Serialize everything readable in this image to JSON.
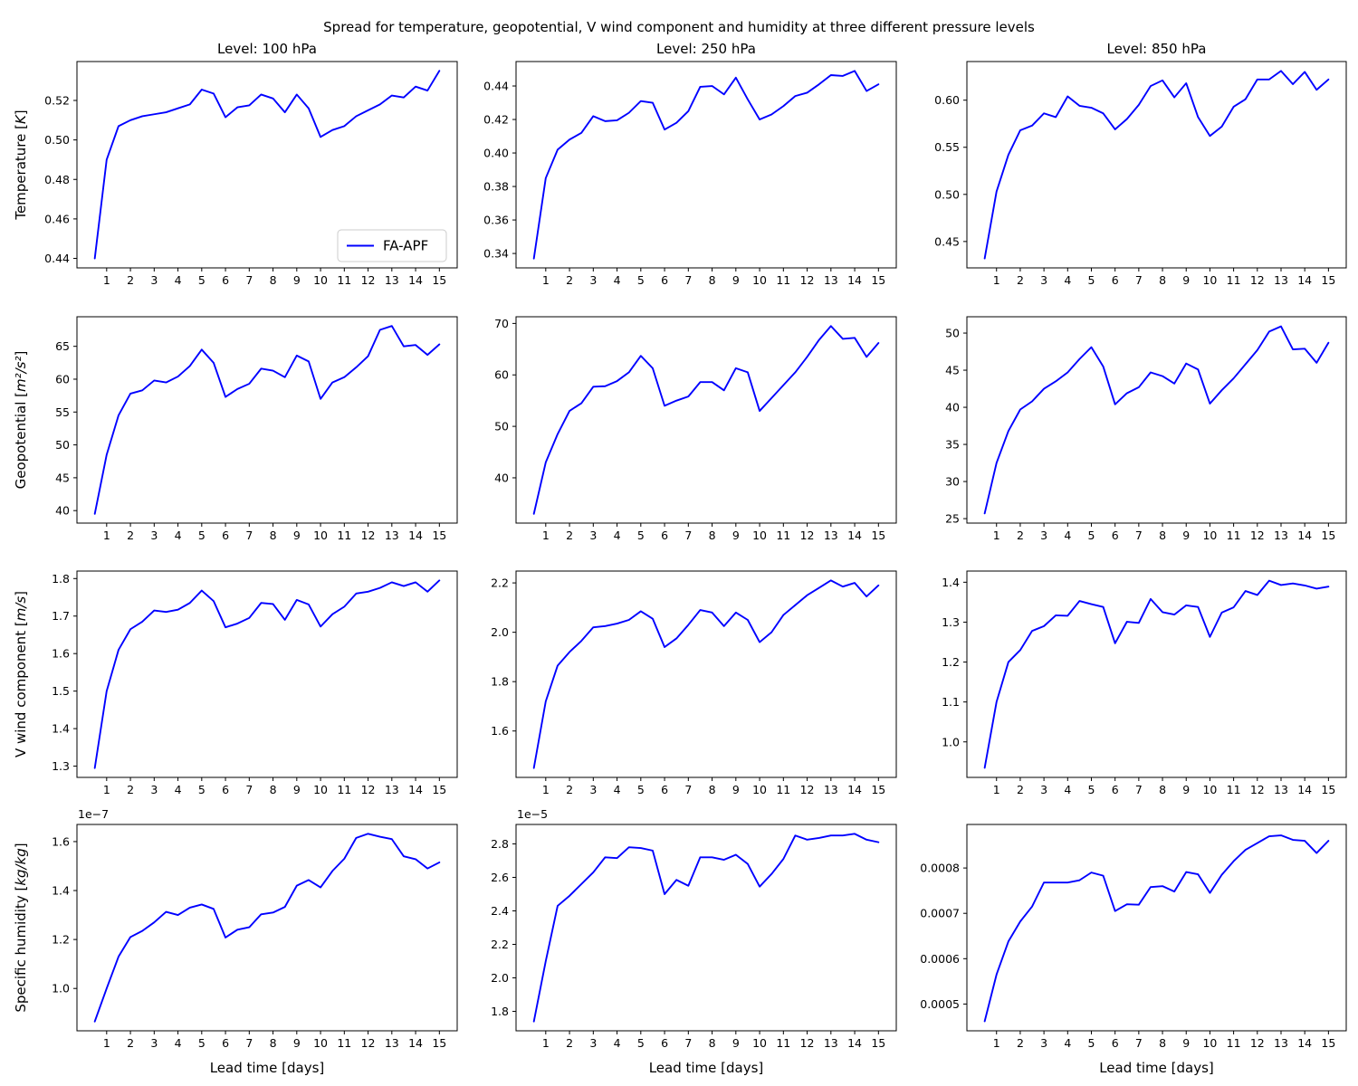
{
  "figure": {
    "title": "Spread for temperature, geopotential, V wind component and humidity at three different pressure levels",
    "xlabel": "Lead time [days]",
    "legend_label": "FA-APF",
    "line_color": "#0000ff",
    "axes_color": "#000000",
    "legend_border_color": "#cccccc"
  },
  "chart_data": {
    "type": "line",
    "series_name": "FA-APF",
    "column_titles": [
      "Level: 100 hPa",
      "Level: 250 hPa",
      "Level: 850 hPa"
    ],
    "row_ylabels": [
      "Temperature [K]",
      "Geopotential [m²/s²]",
      "V wind component [m/s]",
      "Specific humidity [kg/kg]"
    ],
    "xlabel": "Lead time [days]",
    "xlim": [
      -0.25,
      15.75
    ],
    "xticks": [
      1,
      2,
      3,
      4,
      5,
      6,
      7,
      8,
      9,
      10,
      11,
      12,
      13,
      14,
      15
    ],
    "x": [
      0.5,
      1,
      1.5,
      2,
      2.5,
      3,
      3.5,
      4,
      4.5,
      5,
      5.5,
      6,
      6.5,
      7,
      7.5,
      8,
      8.5,
      9,
      9.5,
      10,
      10.5,
      11,
      11.5,
      12,
      12.5,
      13,
      13.5,
      14,
      14.5,
      15
    ],
    "subplots": [
      {
        "id": "temperature-100hpa",
        "title": "Level: 100 hPa",
        "ylabel": "Temperature [K]",
        "offset_label": null,
        "show_legend": true,
        "ylim": [
          0.4352,
          0.5397
        ],
        "yticks": [
          0.44,
          0.46,
          0.48,
          0.5,
          0.52
        ],
        "ytick_labels": [
          "0.44",
          "0.46",
          "0.48",
          "0.50",
          "0.52"
        ],
        "y": [
          0.44,
          0.49,
          0.507,
          0.51,
          0.512,
          0.513,
          0.514,
          0.516,
          0.518,
          0.5255,
          0.5235,
          0.5115,
          0.5165,
          0.5175,
          0.523,
          0.521,
          0.514,
          0.523,
          0.516,
          0.5015,
          0.505,
          0.507,
          0.512,
          0.515,
          0.518,
          0.5225,
          0.5215,
          0.527,
          0.525,
          0.535
        ]
      },
      {
        "id": "temperature-250hpa",
        "title": "Level: 250 hPa",
        "ylabel": null,
        "offset_label": null,
        "show_legend": false,
        "ylim": [
          0.3314,
          0.4546
        ],
        "yticks": [
          0.34,
          0.36,
          0.38,
          0.4,
          0.42,
          0.44
        ],
        "ytick_labels": [
          "0.34",
          "0.36",
          "0.38",
          "0.40",
          "0.42",
          "0.44"
        ],
        "y": [
          0.337,
          0.385,
          0.402,
          0.408,
          0.412,
          0.422,
          0.419,
          0.4195,
          0.424,
          0.431,
          0.43,
          0.414,
          0.418,
          0.425,
          0.4395,
          0.44,
          0.435,
          0.445,
          0.432,
          0.42,
          0.423,
          0.428,
          0.434,
          0.436,
          0.441,
          0.4465,
          0.446,
          0.449,
          0.437,
          0.441
        ]
      },
      {
        "id": "temperature-850hpa",
        "title": "Level: 850 hPa",
        "ylabel": null,
        "offset_label": null,
        "show_legend": false,
        "ylim": [
          0.422,
          0.641
        ],
        "yticks": [
          0.45,
          0.5,
          0.55,
          0.6
        ],
        "ytick_labels": [
          "0.45",
          "0.50",
          "0.55",
          "0.60"
        ],
        "y": [
          0.432,
          0.503,
          0.542,
          0.568,
          0.573,
          0.586,
          0.582,
          0.604,
          0.594,
          0.592,
          0.586,
          0.569,
          0.58,
          0.595,
          0.615,
          0.621,
          0.603,
          0.618,
          0.582,
          0.562,
          0.572,
          0.593,
          0.601,
          0.622,
          0.622,
          0.631,
          0.617,
          0.63,
          0.611,
          0.622
        ]
      },
      {
        "id": "geopotential-100hpa",
        "title": null,
        "ylabel": "Geopotential [m²/s²]",
        "offset_label": null,
        "show_legend": false,
        "ylim": [
          38.1,
          69.5
        ],
        "yticks": [
          40,
          45,
          50,
          55,
          60,
          65
        ],
        "ytick_labels": [
          "40",
          "45",
          "50",
          "55",
          "60",
          "65"
        ],
        "y": [
          39.5,
          48.5,
          54.5,
          57.8,
          58.3,
          59.8,
          59.5,
          60.4,
          62.0,
          64.5,
          62.5,
          57.3,
          58.5,
          59.3,
          61.6,
          61.3,
          60.3,
          63.6,
          62.7,
          57.0,
          59.5,
          60.3,
          61.8,
          63.5,
          67.5,
          68.1,
          65.0,
          65.2,
          63.7,
          65.3
        ]
      },
      {
        "id": "geopotential-250hpa",
        "title": null,
        "ylabel": null,
        "offset_label": null,
        "show_legend": false,
        "ylim": [
          31.2,
          71.3
        ],
        "yticks": [
          40,
          50,
          60,
          70
        ],
        "ytick_labels": [
          "40",
          "50",
          "60",
          "70"
        ],
        "y": [
          33.0,
          43.0,
          48.5,
          53.0,
          54.5,
          57.7,
          57.8,
          58.8,
          60.5,
          63.7,
          61.3,
          54.0,
          55.0,
          55.8,
          58.6,
          58.6,
          57.0,
          61.3,
          60.5,
          53.0,
          55.5,
          58.0,
          60.5,
          63.5,
          66.8,
          69.5,
          67.0,
          67.2,
          63.5,
          66.2
        ]
      },
      {
        "id": "geopotential-850hpa",
        "title": null,
        "ylabel": null,
        "offset_label": null,
        "show_legend": false,
        "ylim": [
          24.4,
          52.2
        ],
        "yticks": [
          25,
          30,
          35,
          40,
          45,
          50
        ],
        "ytick_labels": [
          "25",
          "30",
          "35",
          "40",
          "45",
          "50"
        ],
        "y": [
          25.7,
          32.5,
          36.8,
          39.7,
          40.8,
          42.5,
          43.5,
          44.7,
          46.5,
          48.1,
          45.5,
          40.4,
          41.9,
          42.7,
          44.7,
          44.2,
          43.2,
          45.9,
          45.1,
          40.5,
          42.3,
          43.9,
          45.8,
          47.7,
          50.2,
          50.9,
          47.8,
          47.9,
          46.0,
          48.7
        ]
      },
      {
        "id": "v-wind-100hpa",
        "title": null,
        "ylabel": "V wind component [m/s]",
        "offset_label": null,
        "show_legend": false,
        "ylim": [
          1.27,
          1.82
        ],
        "yticks": [
          1.3,
          1.4,
          1.5,
          1.6,
          1.7,
          1.8
        ],
        "ytick_labels": [
          "1.3",
          "1.4",
          "1.5",
          "1.6",
          "1.7",
          "1.8"
        ],
        "y": [
          1.295,
          1.5,
          1.61,
          1.665,
          1.685,
          1.715,
          1.711,
          1.717,
          1.735,
          1.768,
          1.74,
          1.67,
          1.68,
          1.695,
          1.735,
          1.732,
          1.69,
          1.743,
          1.731,
          1.672,
          1.705,
          1.725,
          1.76,
          1.765,
          1.775,
          1.79,
          1.78,
          1.79,
          1.765,
          1.795
        ]
      },
      {
        "id": "v-wind-250hpa",
        "title": null,
        "ylabel": null,
        "offset_label": null,
        "show_legend": false,
        "ylim": [
          1.412,
          2.248
        ],
        "yticks": [
          1.6,
          1.8,
          2.0,
          2.2
        ],
        "ytick_labels": [
          "1.6",
          "1.8",
          "2.0",
          "2.2"
        ],
        "y": [
          1.45,
          1.72,
          1.865,
          1.92,
          1.965,
          2.02,
          2.025,
          2.035,
          2.05,
          2.085,
          2.055,
          1.94,
          1.975,
          2.03,
          2.09,
          2.08,
          2.025,
          2.08,
          2.05,
          1.96,
          2.0,
          2.07,
          2.11,
          2.15,
          2.18,
          2.21,
          2.185,
          2.2,
          2.145,
          2.19
        ]
      },
      {
        "id": "v-wind-850hpa",
        "title": null,
        "ylabel": null,
        "offset_label": null,
        "show_legend": false,
        "ylim": [
          0.911,
          1.428
        ],
        "yticks": [
          1.0,
          1.1,
          1.2,
          1.3,
          1.4
        ],
        "ytick_labels": [
          "1.0",
          "1.1",
          "1.2",
          "1.3",
          "1.4"
        ],
        "y": [
          0.935,
          1.1,
          1.2,
          1.23,
          1.278,
          1.29,
          1.317,
          1.316,
          1.353,
          1.345,
          1.338,
          1.247,
          1.301,
          1.298,
          1.358,
          1.325,
          1.319,
          1.342,
          1.338,
          1.263,
          1.324,
          1.337,
          1.378,
          1.368,
          1.404,
          1.393,
          1.397,
          1.392,
          1.384,
          1.389
        ]
      },
      {
        "id": "specific-humidity-100hpa",
        "title": null,
        "ylabel": "Specific humidity [kg/kg]",
        "offset_label": "1e−7",
        "show_legend": false,
        "ylim": [
          0.827,
          1.67
        ],
        "yticks": [
          1.0,
          1.2,
          1.4,
          1.6
        ],
        "ytick_labels": [
          "1.0",
          "1.2",
          "1.4",
          "1.6"
        ],
        "y": [
          0.865,
          1.0,
          1.13,
          1.21,
          1.235,
          1.27,
          1.313,
          1.3,
          1.33,
          1.343,
          1.325,
          1.208,
          1.24,
          1.25,
          1.303,
          1.31,
          1.333,
          1.42,
          1.443,
          1.413,
          1.48,
          1.53,
          1.615,
          1.632,
          1.62,
          1.61,
          1.54,
          1.528,
          1.49,
          1.515
        ]
      },
      {
        "id": "specific-humidity-250hpa",
        "title": null,
        "ylabel": null,
        "offset_label": "1e−5",
        "show_legend": false,
        "ylim": [
          1.684,
          2.916
        ],
        "yticks": [
          1.8,
          2.0,
          2.2,
          2.4,
          2.6,
          2.8
        ],
        "ytick_labels": [
          "1.8",
          "2.0",
          "2.2",
          "2.4",
          "2.6",
          "2.8"
        ],
        "y": [
          1.74,
          2.1,
          2.43,
          2.49,
          2.56,
          2.63,
          2.72,
          2.715,
          2.78,
          2.775,
          2.76,
          2.5,
          2.585,
          2.55,
          2.72,
          2.72,
          2.705,
          2.735,
          2.68,
          2.545,
          2.62,
          2.71,
          2.85,
          2.825,
          2.835,
          2.85,
          2.85,
          2.86,
          2.825,
          2.81
        ]
      },
      {
        "id": "specific-humidity-850hpa",
        "title": null,
        "ylabel": null,
        "offset_label": null,
        "show_legend": false,
        "ylim": [
          0.000441,
          0.000896
        ],
        "yticks": [
          0.0005,
          0.0006,
          0.0007,
          0.0008
        ],
        "ytick_labels": [
          "0.0005",
          "0.0006",
          "0.0007",
          "0.0008"
        ],
        "y": [
          0.000462,
          0.000565,
          0.000638,
          0.000682,
          0.000715,
          0.000768,
          0.000768,
          0.000768,
          0.000773,
          0.00079,
          0.000783,
          0.000705,
          0.00072,
          0.000719,
          0.000758,
          0.00076,
          0.000748,
          0.000791,
          0.000786,
          0.000745,
          0.000785,
          0.000815,
          0.00084,
          0.000855,
          0.00087,
          0.000872,
          0.000862,
          0.00086,
          0.000833,
          0.00086
        ]
      }
    ]
  }
}
